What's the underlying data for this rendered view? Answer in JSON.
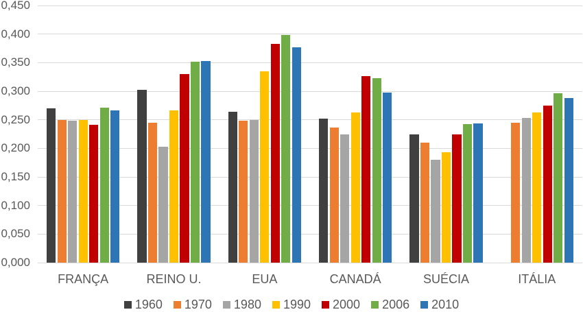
{
  "chart_data": {
    "type": "bar",
    "title": "",
    "categories": [
      "FRANÇA",
      "REINO U.",
      "EUA",
      "CANADÁ",
      "SUÉCIA",
      "ITÁLIA"
    ],
    "series": [
      {
        "name": "1960",
        "color": "#404040",
        "values": [
          0.27,
          0.303,
          0.264,
          0.252,
          0.224,
          null
        ]
      },
      {
        "name": "1970",
        "color": "#ED7D31",
        "values": [
          0.25,
          0.245,
          0.248,
          0.237,
          0.21,
          0.245
        ]
      },
      {
        "name": "1980",
        "color": "#A5A5A5",
        "values": [
          0.248,
          0.203,
          0.25,
          0.224,
          0.18,
          0.253
        ]
      },
      {
        "name": "1990",
        "color": "#FFC000",
        "values": [
          0.25,
          0.266,
          0.335,
          0.263,
          0.193,
          0.263
        ]
      },
      {
        "name": "2000",
        "color": "#C00000",
        "values": [
          0.241,
          0.33,
          0.383,
          0.327,
          0.225,
          0.275
        ]
      },
      {
        "name": "2006",
        "color": "#70AD47",
        "values": [
          0.271,
          0.352,
          0.399,
          0.323,
          0.242,
          0.296
        ]
      },
      {
        "name": "2010",
        "color": "#2E75B6",
        "values": [
          0.267,
          0.353,
          0.377,
          0.298,
          0.244,
          0.288
        ]
      }
    ],
    "xlabel": "",
    "ylabel": "",
    "ylim": [
      0,
      0.45
    ],
    "y_tick_step": 0.05,
    "y_tick_labels": [
      "0,000",
      "0,050",
      "0,100",
      "0,150",
      "0,200",
      "0,250",
      "0,300",
      "0,350",
      "0,400",
      "0,450"
    ],
    "decimal_separator": ",",
    "grid": true,
    "gridline_color": "#D9D9D9",
    "axis_line_color": "#D9D9D9",
    "axis_text_color": "#595959",
    "legend_position": "bottom",
    "legend": [
      "1960",
      "1970",
      "1980",
      "1990",
      "2000",
      "2006",
      "2010"
    ]
  }
}
